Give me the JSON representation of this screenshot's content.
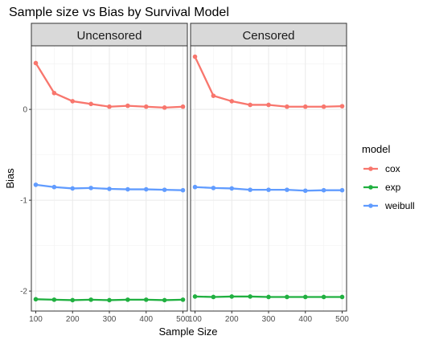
{
  "chart_data": {
    "type": "line",
    "title": "Sample size vs Bias by Survival Model",
    "xlabel": "Sample Size",
    "ylabel": "Bias",
    "xlim": [
      88,
      512
    ],
    "ylim": [
      -2.22,
      0.7
    ],
    "x_ticks": [
      100,
      200,
      300,
      400,
      500
    ],
    "x_tick_labels": [
      "100",
      "200",
      "300",
      "400",
      "500"
    ],
    "y_ticks": [
      0,
      -1,
      -2
    ],
    "y_tick_labels": [
      "0",
      "-1",
      "-2"
    ],
    "grid": true,
    "legend": {
      "title": "model",
      "position": "right",
      "entries": [
        "cox",
        "exp",
        "weibull"
      ]
    },
    "colors": {
      "cox": "#F8766D",
      "exp": "#20B040",
      "weibull": "#619CFF"
    },
    "x": [
      100,
      150,
      200,
      250,
      300,
      350,
      400,
      450,
      500
    ],
    "panels": [
      {
        "label": "Uncensored",
        "series": [
          {
            "name": "cox",
            "values": [
              0.51,
              0.18,
              0.09,
              0.06,
              0.03,
              0.04,
              0.03,
              0.02,
              0.03
            ]
          },
          {
            "name": "exp",
            "values": [
              -2.09,
              -2.095,
              -2.1,
              -2.095,
              -2.1,
              -2.095,
              -2.095,
              -2.1,
              -2.095
            ]
          },
          {
            "name": "weibull",
            "values": [
              -0.83,
              -0.855,
              -0.87,
              -0.865,
              -0.875,
              -0.88,
              -0.88,
              -0.885,
              -0.89
            ]
          }
        ]
      },
      {
        "label": "Censored",
        "series": [
          {
            "name": "cox",
            "values": [
              0.58,
              0.15,
              0.09,
              0.05,
              0.05,
              0.03,
              0.03,
              0.03,
              0.035
            ]
          },
          {
            "name": "exp",
            "values": [
              -2.06,
              -2.065,
              -2.06,
              -2.06,
              -2.065,
              -2.065,
              -2.065,
              -2.065,
              -2.065
            ]
          },
          {
            "name": "weibull",
            "values": [
              -0.855,
              -0.865,
              -0.87,
              -0.885,
              -0.885,
              -0.885,
              -0.895,
              -0.89,
              -0.89
            ]
          }
        ]
      }
    ]
  }
}
